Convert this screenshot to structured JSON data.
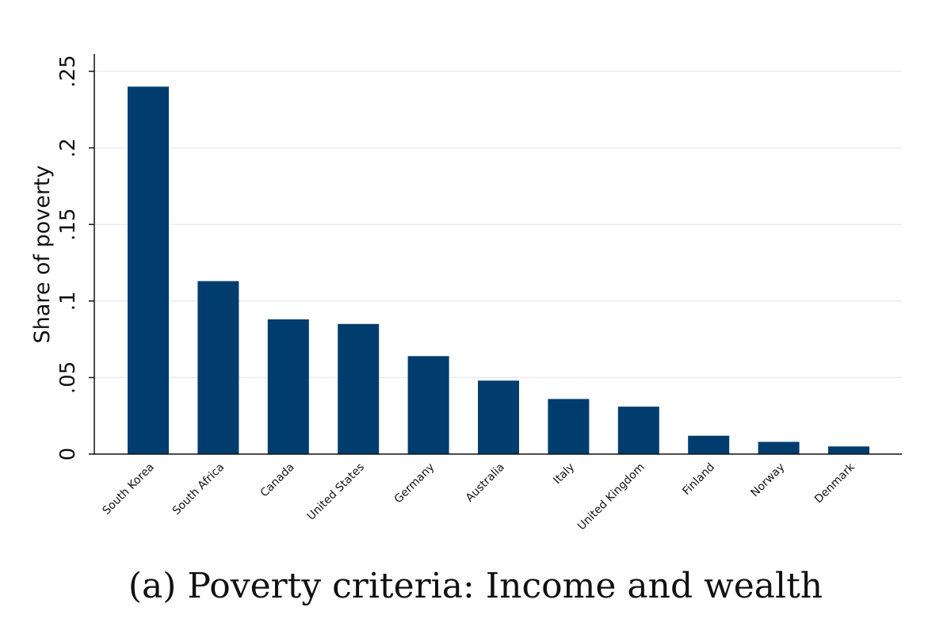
{
  "caption": "(a) Poverty criteria: Income and wealth",
  "chart_data": {
    "type": "bar",
    "categories": [
      "South Korea",
      "South Africa",
      "Canada",
      "United States",
      "Germany",
      "Australia",
      "Italy",
      "United Kingdom",
      "Finland",
      "Norway",
      "Denmark"
    ],
    "values": [
      0.24,
      0.113,
      0.088,
      0.085,
      0.064,
      0.048,
      0.036,
      0.031,
      0.012,
      0.008,
      0.005
    ],
    "ylabel": "Share of poverty",
    "xlabel": "",
    "ylim": [
      0,
      0.25
    ],
    "yticks": [
      0,
      0.05,
      0.1,
      0.15,
      0.2,
      0.25
    ],
    "ytick_labels": [
      "0",
      ".05",
      ".1",
      ".15",
      ".2",
      ".25"
    ],
    "grid": "horizontal",
    "bar_color": "#003d6e",
    "grid_color": "#e8ecf4",
    "legend": "none"
  }
}
